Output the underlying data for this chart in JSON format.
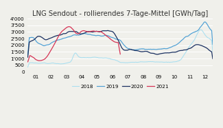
{
  "title": "LNG Sendout - rollierendes 7-Tage-Mittel [GWh/Tag]",
  "title_fontsize": 7.2,
  "background_color": "#f0f0eb",
  "ylim": [
    0,
    4000
  ],
  "yticks": [
    0,
    500,
    1000,
    1500,
    2000,
    2500,
    3000,
    3500,
    4000
  ],
  "xtick_labels": [
    "01",
    "02",
    "03",
    "04",
    "05",
    "06",
    "07",
    "08",
    "09",
    "10",
    "11",
    "12"
  ],
  "legend": [
    "2018",
    "2019",
    "2020",
    "2021"
  ],
  "colors": {
    "2018": "#a8dff0",
    "2019": "#4c9fd4",
    "2020": "#1a3060",
    "2021": "#d63355"
  },
  "line_widths": {
    "2018": 0.75,
    "2019": 0.85,
    "2020": 0.9,
    "2021": 0.9
  }
}
